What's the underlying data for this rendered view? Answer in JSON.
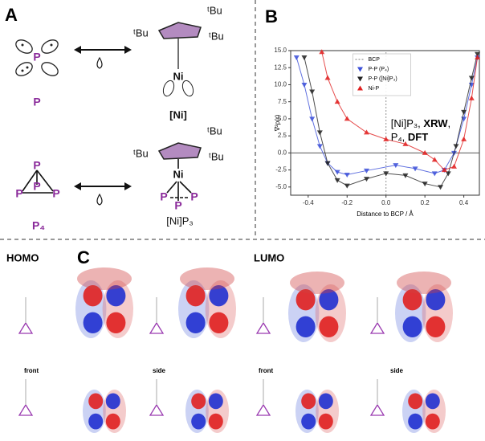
{
  "panel_a": {
    "label": "A",
    "p_atom": "P",
    "p_name": "P",
    "ni_name": "[Ni]",
    "ni_atom": "Ni",
    "tbu": "ᵗBu",
    "p4_atoms": [
      "P",
      "P",
      "P",
      "P"
    ],
    "p4_name": "P₄",
    "nip3_atoms": [
      "Ni",
      "P",
      "P",
      "P"
    ],
    "nip3_name": "[Ni]P₃"
  },
  "panel_b_label": "B",
  "chart_data": {
    "type": "line",
    "xlabel": "Distance to BCP / Å",
    "ylabel": "∇²ρ(r)",
    "xlim": [
      -0.49,
      0.48
    ],
    "ylim": [
      -6.2,
      15
    ],
    "xticks": [
      -0.4,
      -0.2,
      {
        "value": 0,
        "label": "0.0"
      },
      0.2,
      0.4
    ],
    "yticks": [
      {
        "value": -5,
        "label": "-5.0"
      },
      {
        "value": -2.5,
        "label": "-2.5"
      },
      {
        "value": 0,
        "label": "0.0"
      },
      {
        "value": 2.5,
        "label": "2.5"
      },
      {
        "value": 5,
        "label": "5.0"
      },
      {
        "value": 7.5,
        "label": "7.5"
      },
      {
        "value": 10,
        "label": "10.0"
      },
      {
        "value": 12.5,
        "label": "12.5"
      },
      {
        "value": 15,
        "label": "15.0"
      }
    ],
    "legend": "upper center",
    "series": [
      {
        "name": "BCP",
        "color": "#777777",
        "marker": "none",
        "dash": "2,2",
        "x": [
          0,
          0
        ],
        "values": [
          -6.2,
          15
        ]
      },
      {
        "name": "P-P (P₄)",
        "color": "#3b4fd8",
        "marker": "down",
        "x": [
          -0.46,
          -0.42,
          -0.38,
          -0.34,
          -0.3,
          -0.25,
          -0.2,
          -0.1,
          0.05,
          0.15,
          0.25,
          0.3,
          0.35,
          0.4,
          0.44,
          0.47
        ],
        "values": [
          14,
          10,
          5,
          1,
          -1.5,
          -2.8,
          -3.2,
          -2.6,
          -1.8,
          -2.3,
          -3,
          -2.5,
          0,
          5,
          10,
          14
        ]
      },
      {
        "name": "P-P ([Ni]P₃)",
        "color": "#222222",
        "marker": "down",
        "x": [
          -0.42,
          -0.38,
          -0.34,
          -0.3,
          -0.25,
          -0.2,
          -0.1,
          0,
          0.1,
          0.2,
          0.28,
          0.32,
          0.36,
          0.4,
          0.44,
          0.47
        ],
        "values": [
          14,
          9,
          3,
          -1.5,
          -4,
          -4.8,
          -3.8,
          -3,
          -3.3,
          -4.5,
          -5,
          -3,
          1,
          6,
          11,
          14.5
        ]
      },
      {
        "name": "Ni-P",
        "color": "#e02020",
        "marker": "up",
        "x": [
          -0.33,
          -0.3,
          -0.25,
          -0.2,
          -0.1,
          0,
          0.1,
          0.2,
          0.25,
          0.3,
          0.35,
          0.4,
          0.44,
          0.47
        ],
        "values": [
          14.8,
          11,
          7.5,
          5,
          3,
          2,
          1.3,
          0,
          -1,
          -2.5,
          -2,
          2,
          8,
          14
        ]
      }
    ],
    "annotation": [
      [
        {
          "text": "[Ni]P₃, "
        },
        {
          "text": "XRW",
          "bold": true
        },
        {
          "text": ","
        }
      ],
      [
        {
          "text": "P₄, "
        },
        {
          "text": "DFT",
          "bold": true
        }
      ]
    ]
  },
  "panel_c": {
    "label": "C",
    "homo": "HOMO",
    "lumo": "LUMO",
    "views": [
      "front",
      "side",
      "front",
      "side"
    ]
  }
}
